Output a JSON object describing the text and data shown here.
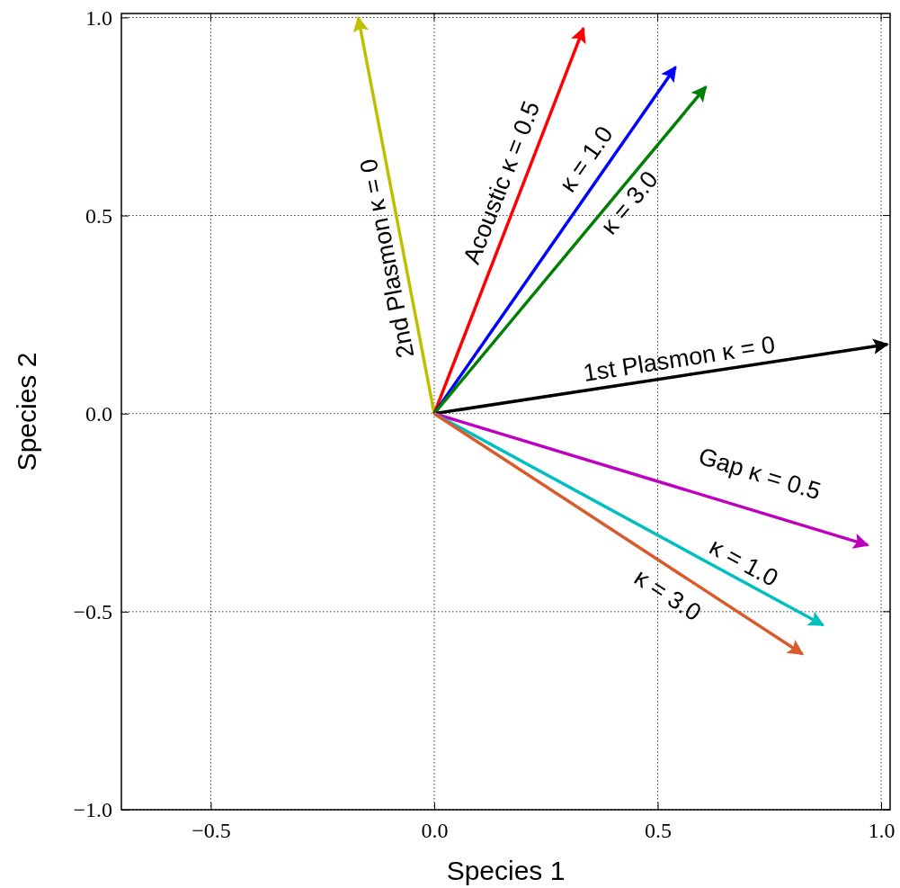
{
  "chart_data": {
    "type": "line",
    "xlabel": "Species 1",
    "ylabel": "Species 2",
    "xlim": [
      -0.7,
      1.02
    ],
    "ylim": [
      -1,
      1.01
    ],
    "xticks": [
      {
        "value": -0.5,
        "label": "−0.5"
      },
      {
        "value": 0,
        "label": "0.0"
      },
      {
        "value": 0.5,
        "label": "0.5"
      },
      {
        "value": 1,
        "label": "1.0"
      }
    ],
    "yticks": [
      {
        "value": -1,
        "label": "−1.0"
      },
      {
        "value": -0.5,
        "label": "−0.5"
      },
      {
        "value": 0,
        "label": "0.0"
      },
      {
        "value": 0.5,
        "label": "0.5"
      },
      {
        "value": 1,
        "label": "1.0"
      }
    ],
    "grid": true,
    "line_style": "solid",
    "series": [
      {
        "name": "2nd Plasmon κ = 0",
        "color": "#bfbf00",
        "x": [
          0,
          -0.17
        ],
        "values": [
          0,
          1.0
        ]
      },
      {
        "name": "Acoustic κ = 0.5",
        "color": "#ff0000",
        "x": [
          0,
          0.334
        ],
        "values": [
          0,
          0.973
        ]
      },
      {
        "name": "κ = 1.0",
        "color": "#0000ff",
        "x": [
          0,
          0.54
        ],
        "values": [
          0,
          0.875
        ]
      },
      {
        "name": "κ = 3.0",
        "color": "#008000",
        "x": [
          0,
          0.608
        ],
        "values": [
          0,
          0.825
        ]
      },
      {
        "name": "1st Plasmon κ = 0",
        "color": "#000000",
        "x": [
          0,
          1.014
        ],
        "values": [
          0,
          0.175
        ]
      },
      {
        "name": "Gap κ = 0.5",
        "color": "#bf00bf",
        "x": [
          0,
          0.97
        ],
        "values": [
          0,
          -0.332
        ]
      },
      {
        "name": "κ = 1.0",
        "color": "#00bfbf",
        "x": [
          0,
          0.87
        ],
        "values": [
          0,
          -0.534
        ]
      },
      {
        "name": "κ = 3.0",
        "color": "#d95a2b",
        "x": [
          0,
          0.824
        ],
        "values": [
          0,
          -0.607
        ]
      }
    ]
  }
}
